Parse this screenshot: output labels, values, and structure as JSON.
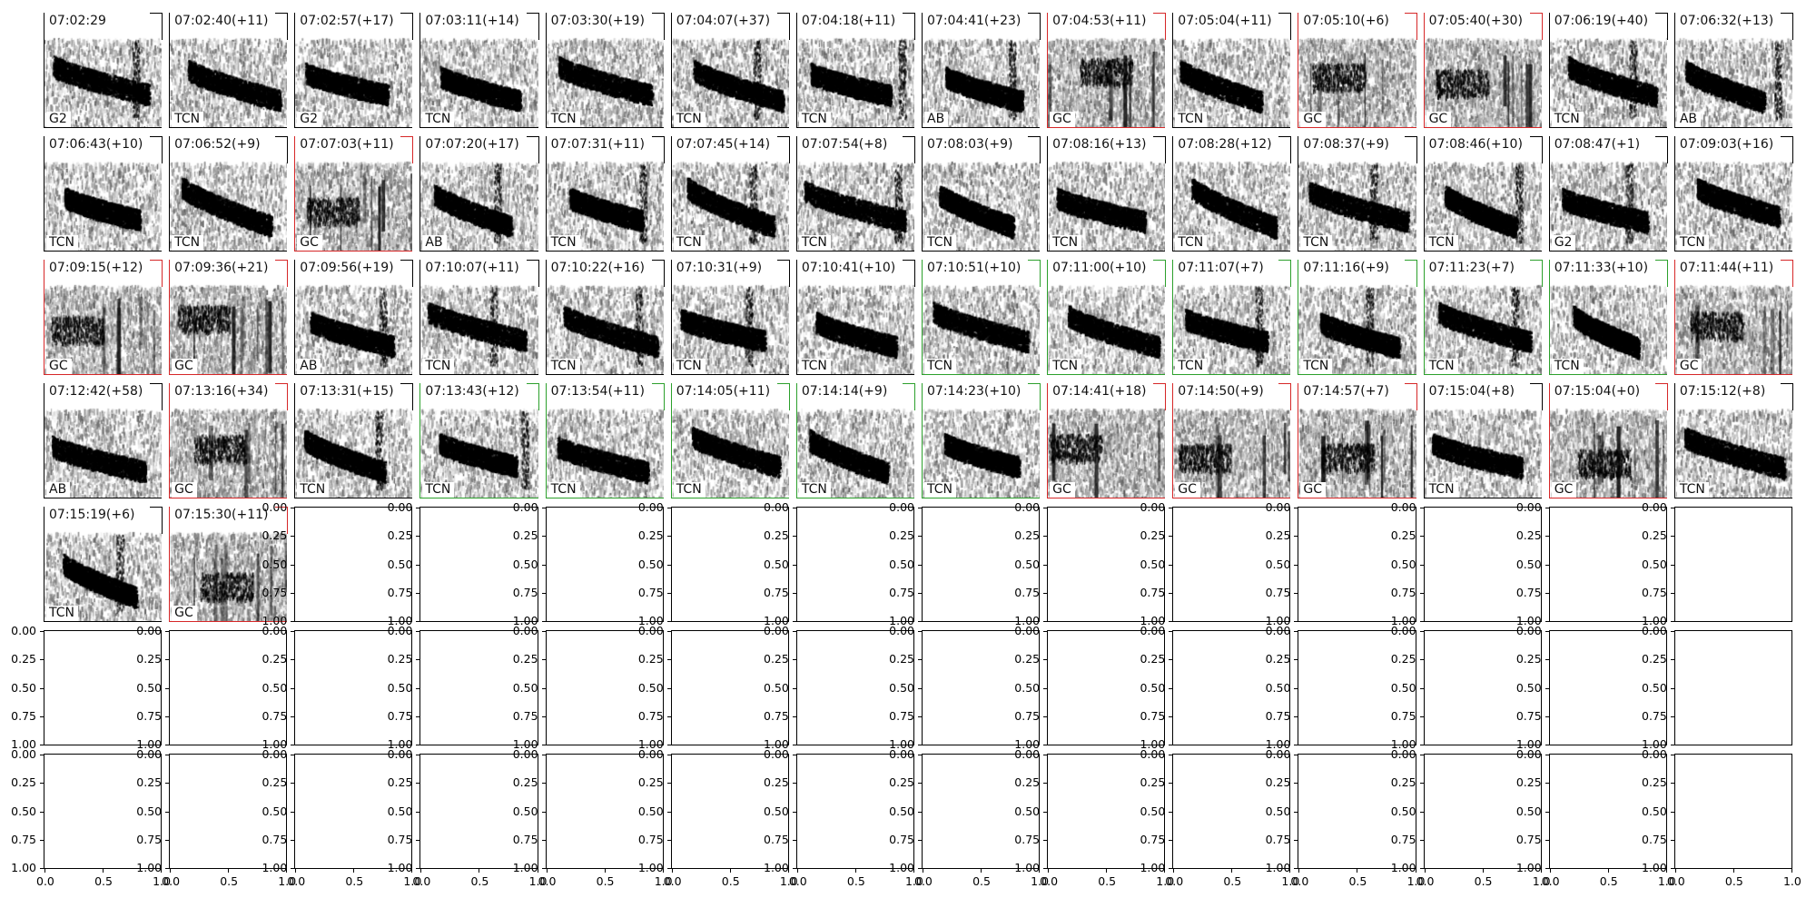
{
  "chart_data": {
    "type": "heatmap",
    "colors": {
      "rejected_frame": "#d62728",
      "accepted_frame": "#2ca02c",
      "default_frame": "#000000"
    },
    "spectrogram_panels": [
      {
        "time": "07:02:29",
        "label": "G2",
        "frame": "default"
      },
      {
        "time": "07:02:40(+11)",
        "label": "TCN",
        "frame": "default"
      },
      {
        "time": "07:02:57(+17)",
        "label": "G2",
        "frame": "default"
      },
      {
        "time": "07:03:11(+14)",
        "label": "TCN",
        "frame": "default"
      },
      {
        "time": "07:03:30(+19)",
        "label": "TCN",
        "frame": "default"
      },
      {
        "time": "07:04:07(+37)",
        "label": "TCN",
        "frame": "default"
      },
      {
        "time": "07:04:18(+11)",
        "label": "TCN",
        "frame": "default"
      },
      {
        "time": "07:04:41(+23)",
        "label": "AB",
        "frame": "default"
      },
      {
        "time": "07:04:53(+11)",
        "label": "GC",
        "frame": "red"
      },
      {
        "time": "07:05:04(+11)",
        "label": "TCN",
        "frame": "default"
      },
      {
        "time": "07:05:10(+6)",
        "label": "GC",
        "frame": "red"
      },
      {
        "time": "07:05:40(+30)",
        "label": "GC",
        "frame": "red"
      },
      {
        "time": "07:06:19(+40)",
        "label": "TCN",
        "frame": "default"
      },
      {
        "time": "07:06:32(+13)",
        "label": "AB",
        "frame": "default"
      },
      {
        "time": "07:06:43(+10)",
        "label": "TCN",
        "frame": "default"
      },
      {
        "time": "07:06:52(+9)",
        "label": "TCN",
        "frame": "default"
      },
      {
        "time": "07:07:03(+11)",
        "label": "GC",
        "frame": "red"
      },
      {
        "time": "07:07:20(+17)",
        "label": "AB",
        "frame": "default"
      },
      {
        "time": "07:07:31(+11)",
        "label": "TCN",
        "frame": "default"
      },
      {
        "time": "07:07:45(+14)",
        "label": "TCN",
        "frame": "default"
      },
      {
        "time": "07:07:54(+8)",
        "label": "TCN",
        "frame": "default"
      },
      {
        "time": "07:08:03(+9)",
        "label": "TCN",
        "frame": "default"
      },
      {
        "time": "07:08:16(+13)",
        "label": "TCN",
        "frame": "default"
      },
      {
        "time": "07:08:28(+12)",
        "label": "TCN",
        "frame": "default"
      },
      {
        "time": "07:08:37(+9)",
        "label": "TCN",
        "frame": "default"
      },
      {
        "time": "07:08:46(+10)",
        "label": "TCN",
        "frame": "default"
      },
      {
        "time": "07:08:47(+1)",
        "label": "G2",
        "frame": "default"
      },
      {
        "time": "07:09:03(+16)",
        "label": "TCN",
        "frame": "default"
      },
      {
        "time": "07:09:15(+12)",
        "label": "GC",
        "frame": "red"
      },
      {
        "time": "07:09:36(+21)",
        "label": "GC",
        "frame": "red"
      },
      {
        "time": "07:09:56(+19)",
        "label": "AB",
        "frame": "default"
      },
      {
        "time": "07:10:07(+11)",
        "label": "TCN",
        "frame": "default"
      },
      {
        "time": "07:10:22(+16)",
        "label": "TCN",
        "frame": "default"
      },
      {
        "time": "07:10:31(+9)",
        "label": "TCN",
        "frame": "default"
      },
      {
        "time": "07:10:41(+10)",
        "label": "TCN",
        "frame": "default"
      },
      {
        "time": "07:10:51(+10)",
        "label": "TCN",
        "frame": "green"
      },
      {
        "time": "07:11:00(+10)",
        "label": "TCN",
        "frame": "green"
      },
      {
        "time": "07:11:07(+7)",
        "label": "TCN",
        "frame": "green"
      },
      {
        "time": "07:11:16(+9)",
        "label": "TCN",
        "frame": "green"
      },
      {
        "time": "07:11:23(+7)",
        "label": "TCN",
        "frame": "green"
      },
      {
        "time": "07:11:33(+10)",
        "label": "TCN",
        "frame": "green"
      },
      {
        "time": "07:11:44(+11)",
        "label": "GC",
        "frame": "red"
      },
      {
        "time": "07:12:42(+58)",
        "label": "AB",
        "frame": "default"
      },
      {
        "time": "07:13:16(+34)",
        "label": "GC",
        "frame": "red"
      },
      {
        "time": "07:13:31(+15)",
        "label": "TCN",
        "frame": "default"
      },
      {
        "time": "07:13:43(+12)",
        "label": "TCN",
        "frame": "green"
      },
      {
        "time": "07:13:54(+11)",
        "label": "TCN",
        "frame": "green"
      },
      {
        "time": "07:14:05(+11)",
        "label": "TCN",
        "frame": "green"
      },
      {
        "time": "07:14:14(+9)",
        "label": "TCN",
        "frame": "green"
      },
      {
        "time": "07:14:23(+10)",
        "label": "TCN",
        "frame": "green"
      },
      {
        "time": "07:14:41(+18)",
        "label": "GC",
        "frame": "red"
      },
      {
        "time": "07:14:50(+9)",
        "label": "GC",
        "frame": "red"
      },
      {
        "time": "07:14:57(+7)",
        "label": "GC",
        "frame": "red"
      },
      {
        "time": "07:15:04(+8)",
        "label": "TCN",
        "frame": "default"
      },
      {
        "time": "07:15:04(+0)",
        "label": "GC",
        "frame": "red"
      },
      {
        "time": "07:15:12(+8)",
        "label": "TCN",
        "frame": "default"
      },
      {
        "time": "07:15:19(+6)",
        "label": "TCN",
        "frame": "default"
      },
      {
        "time": "07:15:30(+11)",
        "label": "GC",
        "frame": "red"
      }
    ],
    "empty_axes": {
      "xlim": [
        0.0,
        1.0
      ],
      "ylim": [
        0.0,
        1.0
      ],
      "ytick_labels": [
        "0.00",
        "0.25",
        "0.50",
        "0.75",
        "1.00"
      ],
      "xtick_labels": [
        "0.0",
        "0.5",
        "1.0"
      ],
      "left_column_ytick_labels": [
        "0.00",
        "0.25",
        "0.50",
        "0.75",
        "1.00"
      ]
    }
  }
}
